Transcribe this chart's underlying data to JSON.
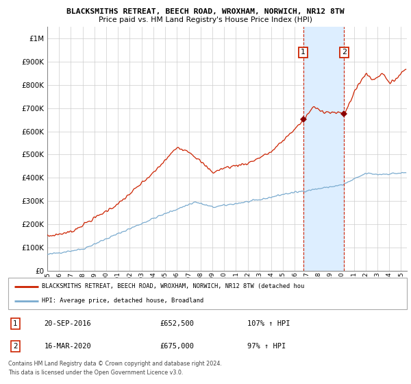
{
  "title1": "BLACKSMITHS RETREAT, BEECH ROAD, WROXHAM, NORWICH, NR12 8TW",
  "title2": "Price paid vs. HM Land Registry's House Price Index (HPI)",
  "ytick_values": [
    0,
    100000,
    200000,
    300000,
    400000,
    500000,
    600000,
    700000,
    800000,
    900000,
    1000000
  ],
  "ylim": [
    0,
    1050000
  ],
  "red_line_color": "#cc2200",
  "blue_line_color": "#7aabcf",
  "shade_color": "#ddeeff",
  "background_color": "#ffffff",
  "grid_color": "#cccccc",
  "sale1_x": 2016.7083,
  "sale1_y": 652500,
  "sale2_x": 2020.1667,
  "sale2_y": 675000,
  "legend_red_text": "BLACKSMITHS RETREAT, BEECH ROAD, WROXHAM, NORWICH, NR12 8TW (detached hou",
  "legend_blue_text": "HPI: Average price, detached house, Broadland",
  "footer1": "Contains HM Land Registry data © Crown copyright and database right 2024.",
  "footer2": "This data is licensed under the Open Government Licence v3.0.",
  "note1_date": "20-SEP-2016",
  "note1_price": "£652,500",
  "note1_hpi": "107% ↑ HPI",
  "note2_date": "16-MAR-2020",
  "note2_price": "£675,000",
  "note2_hpi": "97% ↑ HPI",
  "xlim_left": 1995.0,
  "xlim_right": 2025.5
}
